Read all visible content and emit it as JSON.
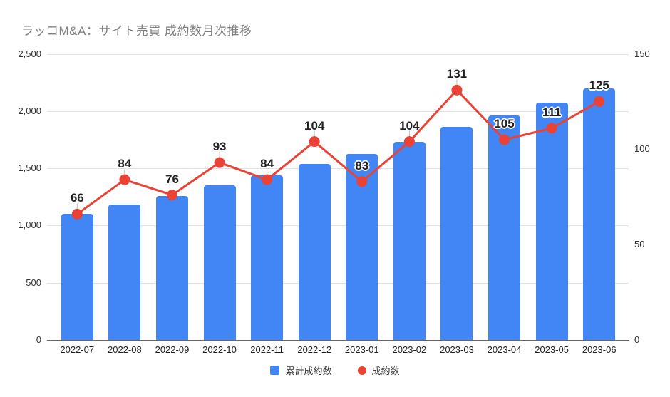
{
  "header": {
    "title": "ラッコM&A：サイト売買 成約数月次推移"
  },
  "legend": {
    "items": [
      {
        "label": "累計成約数",
        "shape": "square",
        "color": "#4285f4"
      },
      {
        "label": "成約数",
        "shape": "circle",
        "color": "#ea4335"
      }
    ],
    "position": "bottom"
  },
  "chart_data": {
    "type": "combo_bar_line",
    "title": "ラッコM&A：サイト売買 成約数月次推移",
    "categories": [
      "2022-07",
      "2022-08",
      "2022-09",
      "2022-10",
      "2022-11",
      "2022-12",
      "2023-01",
      "2023-02",
      "2023-03",
      "2023-04",
      "2023-05",
      "2023-06"
    ],
    "series": [
      {
        "name": "累計成約数",
        "type": "bar",
        "axis": "left",
        "color": "#4285f4",
        "values": [
          1100,
          1184,
          1260,
          1353,
          1437,
          1541,
          1624,
          1728,
          1859,
          1964,
          2075,
          2200
        ]
      },
      {
        "name": "成約数",
        "type": "line",
        "axis": "right",
        "color": "#ea4335",
        "values": [
          66,
          84,
          76,
          93,
          84,
          104,
          83,
          104,
          131,
          105,
          111,
          125
        ],
        "point_labels_visible": true
      }
    ],
    "left_axis": {
      "min": 0,
      "max": 2500,
      "tick_values": [
        0,
        500,
        1000,
        1500,
        2000,
        2500
      ],
      "tick_labels": [
        "0",
        "500",
        "1,000",
        "1,500",
        "2,000",
        "2,500"
      ]
    },
    "right_axis": {
      "min": 0,
      "max": 150,
      "tick_values": [
        0,
        50,
        100,
        150
      ],
      "tick_labels": [
        "0",
        "50",
        "100",
        "150"
      ]
    },
    "label_halo_indices": [
      6,
      9,
      10,
      11
    ],
    "grid": true,
    "legend_position": "bottom"
  },
  "colors": {
    "bar": "#4285f4",
    "line": "#ea4335",
    "grid": "#e0e0e0",
    "baseline": "#666666",
    "axis_text": "#333333",
    "title": "#7f7f7f",
    "point_label": "#212121",
    "leader": "#bdbdbd",
    "background": "#ffffff"
  }
}
